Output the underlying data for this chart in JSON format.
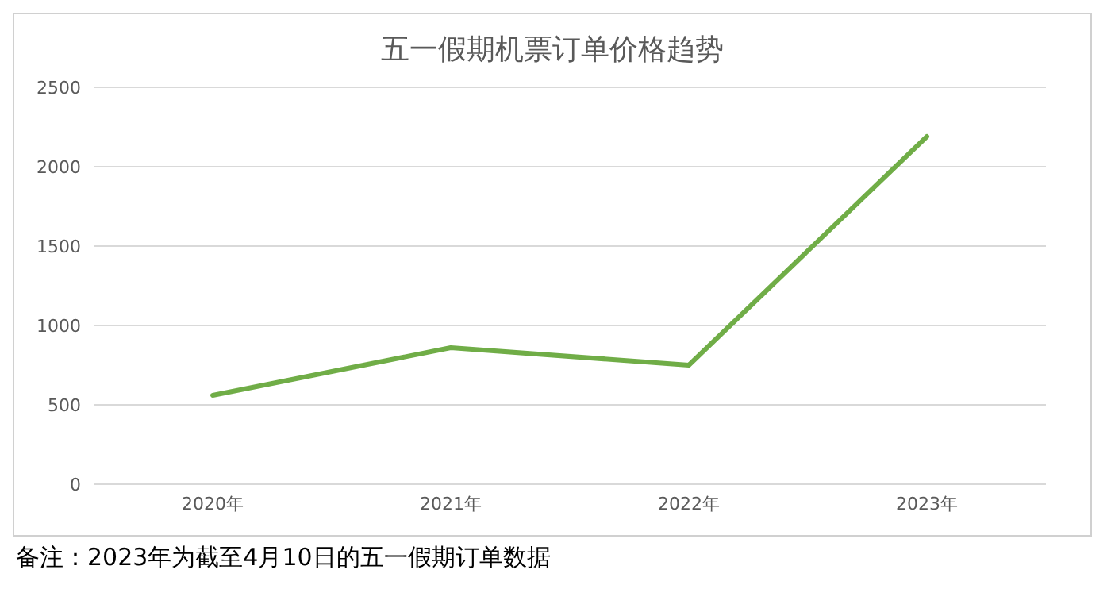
{
  "chart_data": {
    "type": "line",
    "title": "五一假期机票订单价格趋势",
    "categories": [
      "2020年",
      "2021年",
      "2022年",
      "2023年"
    ],
    "series": [
      {
        "color": "#70ad47",
        "values": [
          560,
          860,
          750,
          2190
        ]
      }
    ],
    "ylim": [
      0,
      2500
    ],
    "yticks": [
      0,
      500,
      1000,
      1500,
      2000,
      2500
    ],
    "grid": "y",
    "marker": "none",
    "line_style": "solid",
    "annotations": [
      "备注：2023年为截至4月10日的五一假期订单数据"
    ]
  }
}
